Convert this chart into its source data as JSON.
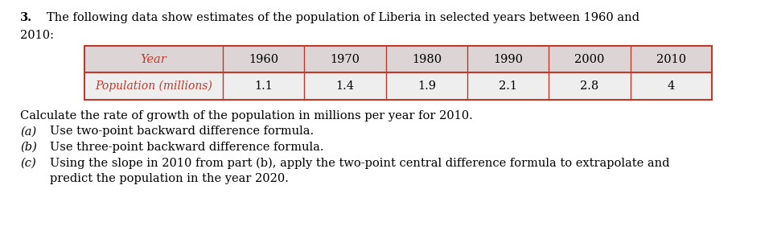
{
  "question_number": "3.",
  "intro_text_line1": "The following data show estimates of the population of Liberia in selected years between 1960 and",
  "intro_text_line2": "2010:",
  "years": [
    "Year",
    "1960",
    "1970",
    "1980",
    "1990",
    "2000",
    "2010"
  ],
  "population_label": "Population (millions)",
  "population_values": [
    "1.1",
    "1.4",
    "1.9",
    "2.1",
    "2.8",
    "4"
  ],
  "instruction": "Calculate the rate of growth of the population in millions per year for 2010.",
  "part_a": "Use two-point backward difference formula.",
  "part_b": "Use three-point backward difference formula.",
  "part_c_line1": "Using the slope in 2010 from part (b), apply the two-point central difference formula to extrapolate and",
  "part_c_line2": "predict the population in the year 2020.",
  "header_bg_color": "#ddd5d5",
  "row_bg_color": "#eeeeee",
  "border_color": "#c0392b",
  "label_color": "#c0392b",
  "number_color": "#000000",
  "text_color": "#000000",
  "bold_number_color": "#000000",
  "bg_color": "#ffffff",
  "font_size": 10.5
}
